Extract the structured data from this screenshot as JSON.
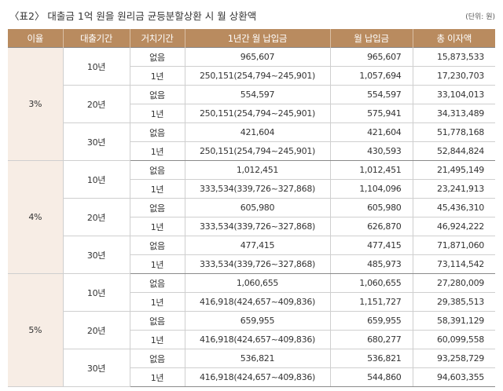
{
  "header": {
    "title": "〈표2〉 대출금 1억 원을 원리금 균등분할상환 시 월 상환액",
    "unit": "(단위: 원)"
  },
  "table": {
    "columns": [
      "이율",
      "대출기간",
      "거치기간",
      "1년간 월 납입금",
      "월 납입금",
      "총 이자액"
    ],
    "groups": [
      {
        "rate": "3%",
        "terms": [
          {
            "term": "10년",
            "rows": [
              [
                "없음",
                "965,607",
                "965,607",
                "15,873,533"
              ],
              [
                "1년",
                "250,151(254,794~245,901)",
                "1,057,694",
                "17,230,703"
              ]
            ]
          },
          {
            "term": "20년",
            "rows": [
              [
                "없음",
                "554,597",
                "554,597",
                "33,104,013"
              ],
              [
                "1년",
                "250,151(254,794~245,901)",
                "575,941",
                "34,313,489"
              ]
            ]
          },
          {
            "term": "30년",
            "rows": [
              [
                "없음",
                "421,604",
                "421,604",
                "51,778,168"
              ],
              [
                "1년",
                "250,151(254,794~245,901)",
                "430,593",
                "52,844,824"
              ]
            ]
          }
        ]
      },
      {
        "rate": "4%",
        "terms": [
          {
            "term": "10년",
            "rows": [
              [
                "없음",
                "1,012,451",
                "1,012,451",
                "21,495,149"
              ],
              [
                "1년",
                "333,534(339,726~327,868)",
                "1,104,096",
                "23,241,913"
              ]
            ]
          },
          {
            "term": "20년",
            "rows": [
              [
                "없음",
                "605,980",
                "605,980",
                "45,436,310"
              ],
              [
                "1년",
                "333,534(339,726~327,868)",
                "626,870",
                "46,924,222"
              ]
            ]
          },
          {
            "term": "30년",
            "rows": [
              [
                "없음",
                "477,415",
                "477,415",
                "71,871,060"
              ],
              [
                "1년",
                "333,534(339,726~327,868)",
                "485,973",
                "73,114,542"
              ]
            ]
          }
        ]
      },
      {
        "rate": "5%",
        "terms": [
          {
            "term": "10년",
            "rows": [
              [
                "없음",
                "1,060,655",
                "1,060,655",
                "27,280,009"
              ],
              [
                "1년",
                "416,918(424,657~409,836)",
                "1,151,727",
                "29,385,513"
              ]
            ]
          },
          {
            "term": "20년",
            "rows": [
              [
                "없음",
                "659,955",
                "659,955",
                "58,391,129"
              ],
              [
                "1년",
                "416,918(424,657~409,836)",
                "680,277",
                "60,099,558"
              ]
            ]
          },
          {
            "term": "30년",
            "rows": [
              [
                "없음",
                "536,821",
                "536,821",
                "93,258,729"
              ],
              [
                "1년",
                "416,918(424,657~409,836)",
                "544,860",
                "94,603,355"
              ]
            ]
          }
        ]
      }
    ]
  }
}
